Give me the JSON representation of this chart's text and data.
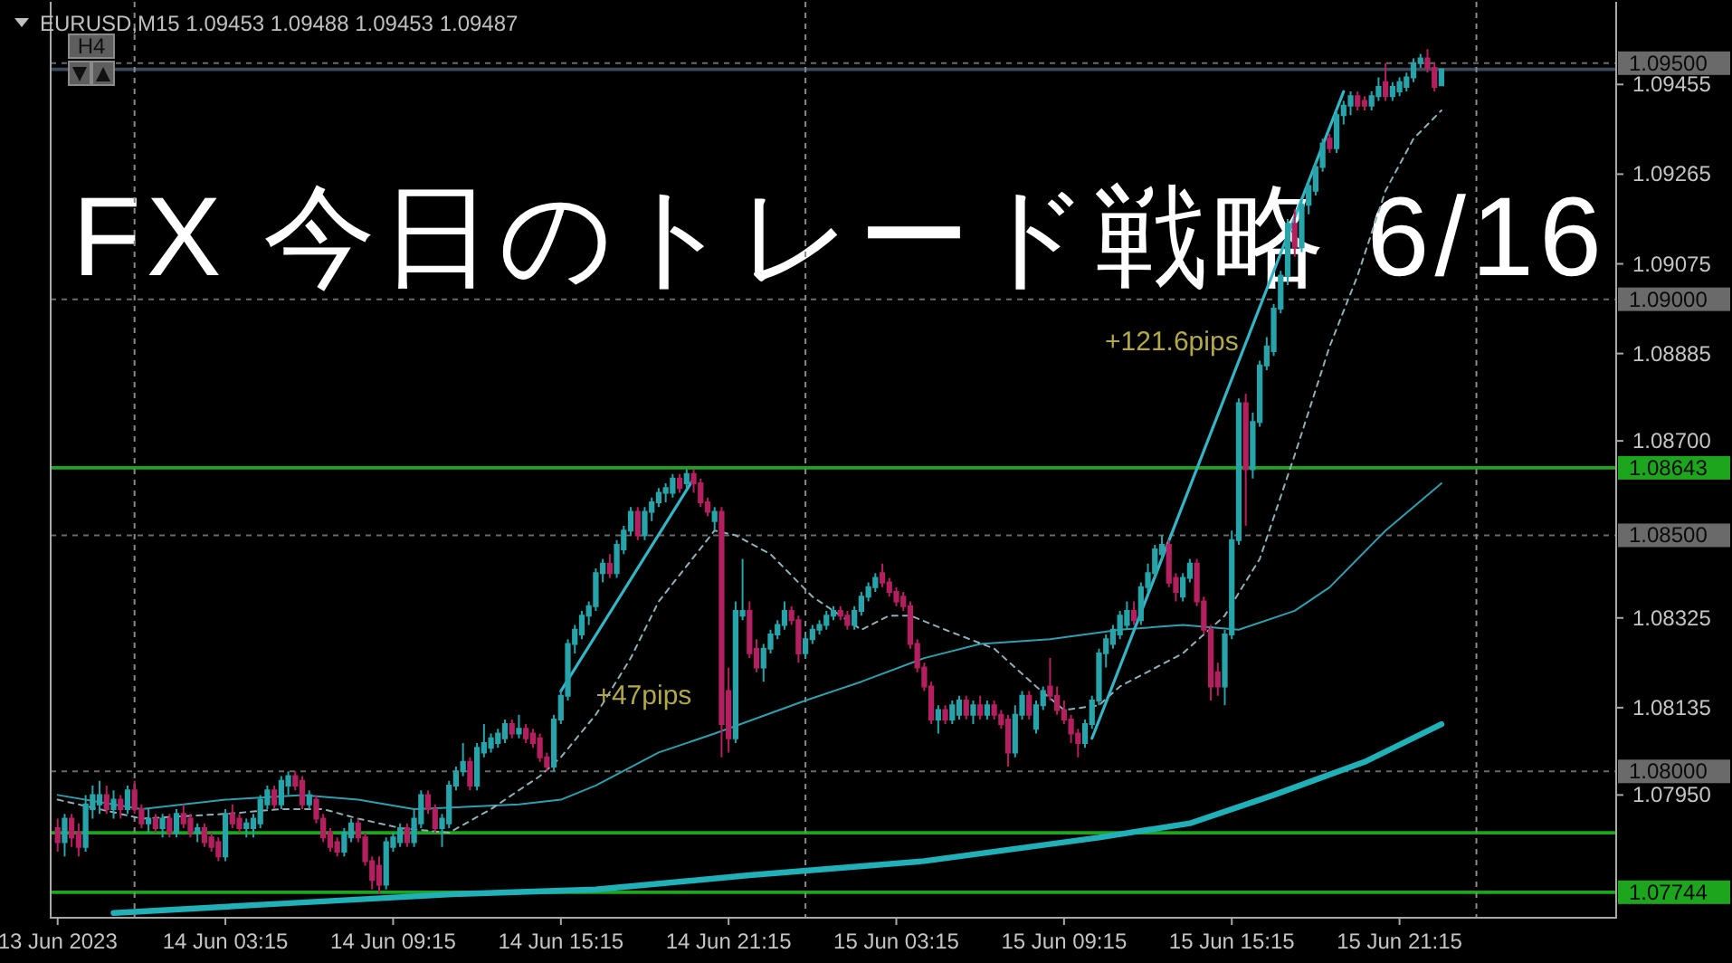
{
  "chart_data": {
    "type": "candlestick",
    "title": "FX 今日のトレード戦略 6/16",
    "subtitle": "EURUSD,M15  1.09453 1.09488 1.09453 1.09487",
    "annotations": [
      "H4",
      {
        "text": "+47pips",
        "x": "2023-06-14T16:30",
        "y": 1.0816
      },
      {
        "text": "+121.6pips",
        "x": "2023-06-15T15:45",
        "y": 1.0891
      }
    ],
    "xlim": [
      "2023-06-13T21:00",
      "2023-06-16T05:00"
    ],
    "ylim": [
      1.0769,
      1.0963
    ],
    "xticks": [
      {
        "value": "2023-06-13T21:15",
        "label": "13 Jun 2023"
      },
      {
        "value": "2023-06-14T03:15",
        "label": "14 Jun 03:15"
      },
      {
        "value": "2023-06-14T09:15",
        "label": "14 Jun 09:15"
      },
      {
        "value": "2023-06-14T15:15",
        "label": "14 Jun 15:15"
      },
      {
        "value": "2023-06-14T21:15",
        "label": "14 Jun 21:15"
      },
      {
        "value": "2023-06-15T03:15",
        "label": "15 Jun 03:15"
      },
      {
        "value": "2023-06-15T09:15",
        "label": "15 Jun 09:15"
      },
      {
        "value": "2023-06-15T15:15",
        "label": "15 Jun 15:15"
      },
      {
        "value": "2023-06-15T21:15",
        "label": "15 Jun 21:15"
      }
    ],
    "yticks": [
      1.09455,
      1.09265,
      1.09075,
      1.08885,
      {
        "value": 1.087,
        "label": "1.08700"
      },
      1.08325,
      1.08135,
      {
        "value": 1.0795,
        "label": "1.07950"
      }
    ],
    "ref_lines": [
      {
        "axis": "y",
        "value": 1.095,
        "label": "1.09500",
        "color": "#6a6a6a",
        "line_style": "dashed"
      },
      {
        "axis": "y",
        "value": 1.09,
        "label": "1.09000",
        "color": "#6a6a6a",
        "line_style": "dashed"
      },
      {
        "axis": "y",
        "value": 1.085,
        "label": "1.08500",
        "color": "#6a6a6a",
        "line_style": "dashed"
      },
      {
        "axis": "y",
        "value": 1.08,
        "label": "1.08000",
        "color": "#6a6a6a",
        "line_style": "dashed"
      },
      {
        "axis": "y",
        "value": 1.09487,
        "color": "#3b4a5c",
        "line_style": "solid"
      },
      {
        "axis": "y",
        "value": 1.08643,
        "label": "1.08643",
        "color": "#1ea51e",
        "line_style": "solid"
      },
      {
        "axis": "y",
        "value": 1.0787,
        "color": "#1ea51e",
        "line_style": "solid"
      },
      {
        "axis": "y",
        "value": 1.07744,
        "label": "1.07744",
        "color": "#1ea51e",
        "line_style": "solid"
      },
      {
        "axis": "x",
        "value": "2023-06-14T00:00",
        "color": "#8a8a8a",
        "line_style": "dashed"
      },
      {
        "axis": "x",
        "value": "2023-06-15T00:00",
        "color": "#8a8a8a",
        "line_style": "dashed"
      },
      {
        "axis": "x",
        "value": "2023-06-16T00:00",
        "color": "#8a8a8a",
        "line_style": "dashed"
      }
    ],
    "series": [
      {
        "type": "line",
        "color": "#1fb0b8",
        "line_style": "solid",
        "x": [
          "2023-06-13T23:15",
          "2023-06-14T05:15",
          "2023-06-14T11:30",
          "2023-06-14T16:30",
          "2023-06-14T22:00",
          "2023-06-15T04:15",
          "2023-06-15T10:30",
          "2023-06-15T13:45",
          "2023-06-15T16:45",
          "2023-06-15T20:00",
          "2023-06-15T22:45"
        ],
        "values": [
          1.077,
          1.0772,
          1.0774,
          1.0775,
          1.0778,
          1.0781,
          1.0786,
          1.0789,
          1.0795,
          1.0802,
          1.081
        ]
      },
      {
        "type": "line",
        "color": "#2f9fae",
        "line_style": "solid",
        "x": [
          "2023-06-13T21:15",
          "2023-06-14T00:15",
          "2023-06-14T03:15",
          "2023-06-14T06:00",
          "2023-06-14T08:00",
          "2023-06-14T10:00",
          "2023-06-14T13:45",
          "2023-06-14T15:15",
          "2023-06-14T16:30",
          "2023-06-14T18:45",
          "2023-06-14T20:45",
          "2023-06-15T00:00",
          "2023-06-15T02:00",
          "2023-06-15T04:15",
          "2023-06-15T06:15",
          "2023-06-15T08:45",
          "2023-06-15T11:15",
          "2023-06-15T13:30",
          "2023-06-15T15:30",
          "2023-06-15T17:30",
          "2023-06-15T18:45",
          "2023-06-15T19:45",
          "2023-06-15T20:45",
          "2023-06-15T22:45"
        ],
        "values": [
          1.0795,
          1.0792,
          1.0794,
          1.0795,
          1.0794,
          1.0792,
          1.0793,
          1.0794,
          1.0797,
          1.0804,
          1.0808,
          1.0815,
          1.0819,
          1.0824,
          1.0827,
          1.0828,
          1.083,
          1.0831,
          1.083,
          1.0834,
          1.0839,
          1.0845,
          1.0851,
          1.0861
        ]
      },
      {
        "type": "line",
        "color": "#8fb0b8",
        "line_style": "dashed",
        "x": [
          "2023-06-13T21:15",
          "2023-06-14T00:15",
          "2023-06-14T03:15",
          "2023-06-14T05:15",
          "2023-06-14T06:45",
          "2023-06-14T08:00",
          "2023-06-14T09:30",
          "2023-06-14T11:15",
          "2023-06-14T12:45",
          "2023-06-14T14:30",
          "2023-06-14T15:15",
          "2023-06-14T16:30",
          "2023-06-14T17:45",
          "2023-06-14T18:45",
          "2023-06-14T20:45",
          "2023-06-14T21:30",
          "2023-06-14T22:45",
          "2023-06-15T00:15",
          "2023-06-15T02:00",
          "2023-06-15T03:00",
          "2023-06-15T03:45",
          "2023-06-15T05:00",
          "2023-06-15T06:45",
          "2023-06-15T08:15",
          "2023-06-15T09:15",
          "2023-06-15T10:30",
          "2023-06-15T11:15",
          "2023-06-15T13:30",
          "2023-06-15T15:00",
          "2023-06-15T16:15",
          "2023-06-15T17:30",
          "2023-06-15T18:45",
          "2023-06-15T19:45",
          "2023-06-15T20:45",
          "2023-06-15T21:45",
          "2023-06-15T22:45"
        ],
        "values": [
          1.0794,
          1.079,
          1.0791,
          1.0792,
          1.0792,
          1.079,
          1.0788,
          1.0787,
          1.0792,
          1.0799,
          1.0803,
          1.0812,
          1.0824,
          1.0836,
          1.0851,
          1.085,
          1.0846,
          1.0837,
          1.083,
          1.0833,
          1.0833,
          1.083,
          1.0826,
          1.0818,
          1.0813,
          1.0814,
          1.0818,
          1.0825,
          1.0833,
          1.0845,
          1.0867,
          1.089,
          1.0905,
          1.0923,
          1.0934,
          1.094
        ]
      },
      {
        "type": "line",
        "color": "#33b5c5",
        "line_style": "solid",
        "x": [
          "2023-06-14T15:15",
          "2023-06-14T20:00"
        ],
        "values": [
          1.0817,
          1.0862
        ]
      },
      {
        "type": "line",
        "color": "#33b5c5",
        "line_style": "solid",
        "x": [
          "2023-06-15T10:15",
          "2023-06-15T19:15"
        ],
        "values": [
          1.0807,
          1.0944
        ]
      }
    ],
    "x": [
      "2023-06-13T21:15",
      "2023-06-13T21:30",
      "2023-06-13T21:45",
      "2023-06-13T22:00",
      "2023-06-13T22:15",
      "2023-06-13T22:30",
      "2023-06-13T22:45",
      "2023-06-13T23:00",
      "2023-06-13T23:15",
      "2023-06-13T23:30",
      "2023-06-13T23:45",
      "2023-06-14T00:00",
      "2023-06-14T00:15",
      "2023-06-14T00:30",
      "2023-06-14T00:45",
      "2023-06-14T01:00",
      "2023-06-14T01:15",
      "2023-06-14T01:30",
      "2023-06-14T01:45",
      "2023-06-14T02:00",
      "2023-06-14T02:15",
      "2023-06-14T02:30",
      "2023-06-14T02:45",
      "2023-06-14T03:00",
      "2023-06-14T03:15",
      "2023-06-14T03:30",
      "2023-06-14T03:45",
      "2023-06-14T04:00",
      "2023-06-14T04:15",
      "2023-06-14T04:30",
      "2023-06-14T04:45",
      "2023-06-14T05:00",
      "2023-06-14T05:15",
      "2023-06-14T05:30",
      "2023-06-14T05:45",
      "2023-06-14T06:00",
      "2023-06-14T06:15",
      "2023-06-14T06:30",
      "2023-06-14T06:45",
      "2023-06-14T07:00",
      "2023-06-14T07:15",
      "2023-06-14T07:30",
      "2023-06-14T07:45",
      "2023-06-14T08:00",
      "2023-06-14T08:15",
      "2023-06-14T08:30",
      "2023-06-14T08:45",
      "2023-06-14T09:00",
      "2023-06-14T09:15",
      "2023-06-14T09:30",
      "2023-06-14T09:45",
      "2023-06-14T10:00",
      "2023-06-14T10:15",
      "2023-06-14T10:30",
      "2023-06-14T10:45",
      "2023-06-14T11:00",
      "2023-06-14T11:15",
      "2023-06-14T11:30",
      "2023-06-14T11:45",
      "2023-06-14T12:00",
      "2023-06-14T12:15",
      "2023-06-14T12:30",
      "2023-06-14T12:45",
      "2023-06-14T13:00",
      "2023-06-14T13:15",
      "2023-06-14T13:30",
      "2023-06-14T13:45",
      "2023-06-14T14:00",
      "2023-06-14T14:15",
      "2023-06-14T14:30",
      "2023-06-14T14:45",
      "2023-06-14T15:00",
      "2023-06-14T15:15",
      "2023-06-14T15:30",
      "2023-06-14T15:45",
      "2023-06-14T16:00",
      "2023-06-14T16:15",
      "2023-06-14T16:30",
      "2023-06-14T16:45",
      "2023-06-14T17:00",
      "2023-06-14T17:15",
      "2023-06-14T17:30",
      "2023-06-14T17:45",
      "2023-06-14T18:00",
      "2023-06-14T18:15",
      "2023-06-14T18:30",
      "2023-06-14T18:45",
      "2023-06-14T19:00",
      "2023-06-14T19:15",
      "2023-06-14T19:30",
      "2023-06-14T19:45",
      "2023-06-14T20:00",
      "2023-06-14T20:15",
      "2023-06-14T20:30",
      "2023-06-14T20:45",
      "2023-06-14T21:00",
      "2023-06-14T21:15",
      "2023-06-14T21:30",
      "2023-06-14T21:45",
      "2023-06-14T22:00",
      "2023-06-14T22:15",
      "2023-06-14T22:30",
      "2023-06-14T22:45",
      "2023-06-14T23:00",
      "2023-06-14T23:15",
      "2023-06-14T23:30",
      "2023-06-14T23:45",
      "2023-06-15T00:00",
      "2023-06-15T00:15",
      "2023-06-15T00:30",
      "2023-06-15T00:45",
      "2023-06-15T01:00",
      "2023-06-15T01:15",
      "2023-06-15T01:30",
      "2023-06-15T01:45",
      "2023-06-15T02:00",
      "2023-06-15T02:15",
      "2023-06-15T02:30",
      "2023-06-15T02:45",
      "2023-06-15T03:00",
      "2023-06-15T03:15",
      "2023-06-15T03:30",
      "2023-06-15T03:45",
      "2023-06-15T04:00",
      "2023-06-15T04:15",
      "2023-06-15T04:30",
      "2023-06-15T04:45",
      "2023-06-15T05:00",
      "2023-06-15T05:15",
      "2023-06-15T05:30",
      "2023-06-15T05:45",
      "2023-06-15T06:00",
      "2023-06-15T06:15",
      "2023-06-15T06:30",
      "2023-06-15T06:45",
      "2023-06-15T07:00",
      "2023-06-15T07:15",
      "2023-06-15T07:30",
      "2023-06-15T07:45",
      "2023-06-15T08:00",
      "2023-06-15T08:15",
      "2023-06-15T08:30",
      "2023-06-15T08:45",
      "2023-06-15T09:00",
      "2023-06-15T09:15",
      "2023-06-15T09:30",
      "2023-06-15T09:45",
      "2023-06-15T10:00",
      "2023-06-15T10:15",
      "2023-06-15T10:30",
      "2023-06-15T10:45",
      "2023-06-15T11:00",
      "2023-06-15T11:15",
      "2023-06-15T11:30",
      "2023-06-15T11:45",
      "2023-06-15T12:00",
      "2023-06-15T12:15",
      "2023-06-15T12:30",
      "2023-06-15T12:45",
      "2023-06-15T13:00",
      "2023-06-15T13:15",
      "2023-06-15T13:30",
      "2023-06-15T13:45",
      "2023-06-15T14:00",
      "2023-06-15T14:15",
      "2023-06-15T14:30",
      "2023-06-15T14:45",
      "2023-06-15T15:00",
      "2023-06-15T15:15",
      "2023-06-15T15:30",
      "2023-06-15T15:45",
      "2023-06-15T16:00",
      "2023-06-15T16:15",
      "2023-06-15T16:30",
      "2023-06-15T16:45",
      "2023-06-15T17:00",
      "2023-06-15T17:15",
      "2023-06-15T17:30",
      "2023-06-15T17:45",
      "2023-06-15T18:00",
      "2023-06-15T18:15",
      "2023-06-15T18:30",
      "2023-06-15T18:45",
      "2023-06-15T19:00",
      "2023-06-15T19:15",
      "2023-06-15T19:30",
      "2023-06-15T19:45",
      "2023-06-15T20:00",
      "2023-06-15T20:15",
      "2023-06-15T20:30",
      "2023-06-15T20:45",
      "2023-06-15T21:00",
      "2023-06-15T21:15",
      "2023-06-15T21:30",
      "2023-06-15T21:45",
      "2023-06-15T22:00",
      "2023-06-15T22:15",
      "2023-06-15T22:30",
      "2023-06-15T22:45"
    ],
    "ohlc": [
      [
        1.0788,
        1.079,
        1.0783,
        1.0785
      ],
      [
        1.0785,
        1.0791,
        1.0782,
        1.079
      ],
      [
        1.079,
        1.0791,
        1.0784,
        1.0786
      ],
      [
        1.0787,
        1.0789,
        1.0782,
        1.0784
      ],
      [
        1.0784,
        1.0795,
        1.0783,
        1.0793
      ],
      [
        1.0792,
        1.0797,
        1.079,
        1.0795
      ],
      [
        1.0793,
        1.0798,
        1.0791,
        1.0795
      ],
      [
        1.0795,
        1.0797,
        1.0791,
        1.0792
      ],
      [
        1.0792,
        1.0796,
        1.079,
        1.0794
      ],
      [
        1.0794,
        1.0795,
        1.079,
        1.0792
      ],
      [
        1.0792,
        1.0797,
        1.0791,
        1.0796
      ],
      [
        1.0796,
        1.0798,
        1.0791,
        1.0792
      ],
      [
        1.0792,
        1.0793,
        1.0788,
        1.0789
      ],
      [
        1.0789,
        1.0792,
        1.0787,
        1.079
      ],
      [
        1.079,
        1.0791,
        1.0787,
        1.0788
      ],
      [
        1.0788,
        1.0791,
        1.0786,
        1.079
      ],
      [
        1.079,
        1.0791,
        1.0786,
        1.0787
      ],
      [
        1.0787,
        1.0792,
        1.0786,
        1.0791
      ],
      [
        1.0791,
        1.0793,
        1.0788,
        1.0789
      ],
      [
        1.079,
        1.0791,
        1.0786,
        1.0787
      ],
      [
        1.0787,
        1.0789,
        1.0785,
        1.0788
      ],
      [
        1.0788,
        1.0789,
        1.0784,
        1.0785
      ],
      [
        1.0786,
        1.0787,
        1.0783,
        1.0784
      ],
      [
        1.0785,
        1.0786,
        1.0781,
        1.0782
      ],
      [
        1.0782,
        1.0792,
        1.0781,
        1.0791
      ],
      [
        1.0791,
        1.0793,
        1.0788,
        1.0789
      ],
      [
        1.079,
        1.0791,
        1.0787,
        1.0788
      ],
      [
        1.0788,
        1.079,
        1.0786,
        1.0789
      ],
      [
        1.0788,
        1.0791,
        1.0786,
        1.079
      ],
      [
        1.0789,
        1.0795,
        1.0788,
        1.0794
      ],
      [
        1.0793,
        1.0797,
        1.0792,
        1.0796
      ],
      [
        1.0796,
        1.0797,
        1.0792,
        1.0793
      ],
      [
        1.0793,
        1.0799,
        1.0792,
        1.0798
      ],
      [
        1.0797,
        1.08,
        1.0795,
        1.0799
      ],
      [
        1.0799,
        1.08,
        1.0796,
        1.0797
      ],
      [
        1.0798,
        1.0799,
        1.0792,
        1.0793
      ],
      [
        1.0793,
        1.0796,
        1.0792,
        1.0795
      ],
      [
        1.0794,
        1.0795,
        1.0789,
        1.079
      ],
      [
        1.079,
        1.0791,
        1.0785,
        1.0786
      ],
      [
        1.0787,
        1.0788,
        1.0783,
        1.0784
      ],
      [
        1.0785,
        1.0786,
        1.0782,
        1.0783
      ],
      [
        1.0783,
        1.0788,
        1.0782,
        1.0787
      ],
      [
        1.0786,
        1.079,
        1.0785,
        1.0789
      ],
      [
        1.0789,
        1.079,
        1.0785,
        1.0786
      ],
      [
        1.0786,
        1.0787,
        1.078,
        1.0781
      ],
      [
        1.0781,
        1.0782,
        1.0775,
        1.0777
      ],
      [
        1.078,
        1.0782,
        1.0774,
        1.0776
      ],
      [
        1.0776,
        1.0786,
        1.0775,
        1.0785
      ],
      [
        1.0784,
        1.0787,
        1.0783,
        1.0786
      ],
      [
        1.0785,
        1.0789,
        1.0784,
        1.0788
      ],
      [
        1.0788,
        1.0789,
        1.0784,
        1.0785
      ],
      [
        1.0785,
        1.0792,
        1.0784,
        1.079
      ],
      [
        1.0789,
        1.0796,
        1.0788,
        1.0795
      ],
      [
        1.0795,
        1.0796,
        1.0791,
        1.0792
      ],
      [
        1.0792,
        1.0793,
        1.0787,
        1.0788
      ],
      [
        1.0788,
        1.0791,
        1.0784,
        1.079
      ],
      [
        1.0789,
        1.0798,
        1.0788,
        1.0797
      ],
      [
        1.0797,
        1.0801,
        1.0796,
        1.08
      ],
      [
        1.08,
        1.0806,
        1.0799,
        1.0802
      ],
      [
        1.0802,
        1.0803,
        1.0796,
        1.0797
      ],
      [
        1.0797,
        1.0806,
        1.0796,
        1.0805
      ],
      [
        1.0804,
        1.081,
        1.0803,
        1.0806
      ],
      [
        1.0805,
        1.0808,
        1.0804,
        1.0807
      ],
      [
        1.0806,
        1.0809,
        1.0805,
        1.0808
      ],
      [
        1.0807,
        1.0811,
        1.0806,
        1.081
      ],
      [
        1.081,
        1.0811,
        1.0807,
        1.0808
      ],
      [
        1.0808,
        1.0812,
        1.0807,
        1.0809
      ],
      [
        1.0809,
        1.081,
        1.0806,
        1.0807
      ],
      [
        1.0808,
        1.0809,
        1.0805,
        1.0806
      ],
      [
        1.0807,
        1.0808,
        1.0802,
        1.0803
      ],
      [
        1.0803,
        1.0804,
        1.08,
        1.0801
      ],
      [
        1.0801,
        1.0812,
        1.08,
        1.0811
      ],
      [
        1.0811,
        1.0817,
        1.081,
        1.0816
      ],
      [
        1.0816,
        1.0828,
        1.0815,
        1.0827
      ],
      [
        1.0827,
        1.0831,
        1.0825,
        1.083
      ],
      [
        1.0829,
        1.0834,
        1.0828,
        1.0833
      ],
      [
        1.0833,
        1.0836,
        1.0831,
        1.0835
      ],
      [
        1.0835,
        1.0843,
        1.0834,
        1.0842
      ],
      [
        1.0842,
        1.0845,
        1.084,
        1.0844
      ],
      [
        1.0844,
        1.0846,
        1.0841,
        1.0842
      ],
      [
        1.0842,
        1.0849,
        1.0841,
        1.0848
      ],
      [
        1.0847,
        1.0852,
        1.0846,
        1.0851
      ],
      [
        1.0851,
        1.0856,
        1.085,
        1.0855
      ],
      [
        1.0855,
        1.0856,
        1.0849,
        1.085
      ],
      [
        1.085,
        1.0856,
        1.0849,
        1.0855
      ],
      [
        1.0855,
        1.0858,
        1.0853,
        1.0857
      ],
      [
        1.0857,
        1.086,
        1.0856,
        1.0859
      ],
      [
        1.0859,
        1.0861,
        1.0857,
        1.086
      ],
      [
        1.0859,
        1.0863,
        1.0858,
        1.0862
      ],
      [
        1.0862,
        1.0863,
        1.0859,
        1.086
      ],
      [
        1.0861,
        1.0864,
        1.086,
        1.0863
      ],
      [
        1.0863,
        1.0864,
        1.0859,
        1.0861
      ],
      [
        1.0861,
        1.0862,
        1.0856,
        1.0857
      ],
      [
        1.0857,
        1.0858,
        1.0854,
        1.0855
      ],
      [
        1.0853,
        1.0856,
        1.0851,
        1.0855
      ],
      [
        1.0855,
        1.0856,
        1.0803,
        1.081
      ],
      [
        1.0817,
        1.0822,
        1.0804,
        1.0807
      ],
      [
        1.0807,
        1.0836,
        1.0806,
        1.0834
      ],
      [
        1.0833,
        1.0845,
        1.0832,
        1.0834
      ],
      [
        1.0834,
        1.0836,
        1.0824,
        1.0825
      ],
      [
        1.0826,
        1.0828,
        1.0821,
        1.0822
      ],
      [
        1.0822,
        1.0827,
        1.0819,
        1.0826
      ],
      [
        1.0826,
        1.083,
        1.0825,
        1.0829
      ],
      [
        1.0829,
        1.0832,
        1.0828,
        1.0831
      ],
      [
        1.0831,
        1.0836,
        1.083,
        1.0834
      ],
      [
        1.0834,
        1.0835,
        1.0831,
        1.0832
      ],
      [
        1.0832,
        1.0833,
        1.0823,
        1.0825
      ],
      [
        1.0825,
        1.0829,
        1.0824,
        1.0828
      ],
      [
        1.0828,
        1.0831,
        1.0827,
        1.083
      ],
      [
        1.083,
        1.0832,
        1.0829,
        1.0831
      ],
      [
        1.0831,
        1.0834,
        1.083,
        1.0833
      ],
      [
        1.0833,
        1.0835,
        1.0832,
        1.0834
      ],
      [
        1.0834,
        1.0835,
        1.0832,
        1.0833
      ],
      [
        1.0833,
        1.0834,
        1.083,
        1.0831
      ],
      [
        1.0831,
        1.0835,
        1.083,
        1.0834
      ],
      [
        1.0834,
        1.0838,
        1.0833,
        1.0837
      ],
      [
        1.0837,
        1.084,
        1.0836,
        1.0839
      ],
      [
        1.0839,
        1.0842,
        1.0838,
        1.0841
      ],
      [
        1.0842,
        1.0844,
        1.0839,
        1.084
      ],
      [
        1.084,
        1.0841,
        1.0837,
        1.0838
      ],
      [
        1.0838,
        1.0839,
        1.0835,
        1.0836
      ],
      [
        1.0837,
        1.0838,
        1.0834,
        1.0835
      ],
      [
        1.0835,
        1.0836,
        1.0826,
        1.0827
      ],
      [
        1.0827,
        1.0828,
        1.0821,
        1.0822
      ],
      [
        1.0822,
        1.0823,
        1.0817,
        1.0818
      ],
      [
        1.0818,
        1.0819,
        1.081,
        1.0811
      ],
      [
        1.0811,
        1.0814,
        1.0808,
        1.0813
      ],
      [
        1.0813,
        1.0814,
        1.081,
        1.0811
      ],
      [
        1.0811,
        1.0815,
        1.081,
        1.0814
      ],
      [
        1.0812,
        1.0816,
        1.0811,
        1.0815
      ],
      [
        1.0815,
        1.0816,
        1.0811,
        1.0812
      ],
      [
        1.0812,
        1.0815,
        1.081,
        1.0814
      ],
      [
        1.0814,
        1.0816,
        1.0811,
        1.0812
      ],
      [
        1.0812,
        1.0815,
        1.0811,
        1.0814
      ],
      [
        1.0814,
        1.0815,
        1.0811,
        1.0812
      ],
      [
        1.0812,
        1.0813,
        1.0809,
        1.081
      ],
      [
        1.0811,
        1.0812,
        1.0801,
        1.0804
      ],
      [
        1.0804,
        1.0814,
        1.0803,
        1.0812
      ],
      [
        1.0812,
        1.0817,
        1.0811,
        1.0816
      ],
      [
        1.0816,
        1.0817,
        1.0811,
        1.0812
      ],
      [
        1.0809,
        1.0815,
        1.0808,
        1.0814
      ],
      [
        1.0814,
        1.0818,
        1.0813,
        1.0817
      ],
      [
        1.0818,
        1.0824,
        1.0815,
        1.0816
      ],
      [
        1.0816,
        1.0818,
        1.0812,
        1.0813
      ],
      [
        1.0813,
        1.0815,
        1.081,
        1.0811
      ],
      [
        1.0811,
        1.0812,
        1.0806,
        1.0808
      ],
      [
        1.0808,
        1.0809,
        1.0803,
        1.0806
      ],
      [
        1.0806,
        1.0811,
        1.0805,
        1.081
      ],
      [
        1.081,
        1.0816,
        1.0809,
        1.0815
      ],
      [
        1.0815,
        1.0826,
        1.0814,
        1.0825
      ],
      [
        1.0825,
        1.0829,
        1.0822,
        1.0828
      ],
      [
        1.0827,
        1.0831,
        1.0826,
        1.083
      ],
      [
        1.0829,
        1.0834,
        1.0828,
        1.0833
      ],
      [
        1.0831,
        1.0836,
        1.083,
        1.0834
      ],
      [
        1.0834,
        1.0836,
        1.0831,
        1.0832
      ],
      [
        1.0832,
        1.084,
        1.0831,
        1.0839
      ],
      [
        1.0839,
        1.0844,
        1.0838,
        1.0842
      ],
      [
        1.0842,
        1.0848,
        1.0841,
        1.0847
      ],
      [
        1.0846,
        1.085,
        1.0845,
        1.0848
      ],
      [
        1.0848,
        1.0849,
        1.0839,
        1.084
      ],
      [
        1.0841,
        1.0842,
        1.0836,
        1.0838
      ],
      [
        1.0837,
        1.0842,
        1.0836,
        1.0841
      ],
      [
        1.0841,
        1.0845,
        1.084,
        1.0844
      ],
      [
        1.0844,
        1.0845,
        1.0835,
        1.0836
      ],
      [
        1.0836,
        1.0837,
        1.0829,
        1.083
      ],
      [
        1.083,
        1.0831,
        1.0815,
        1.0818
      ],
      [
        1.0821,
        1.0823,
        1.0816,
        1.0818
      ],
      [
        1.0818,
        1.083,
        1.0814,
        1.0829
      ],
      [
        1.0829,
        1.0851,
        1.0828,
        1.0849
      ],
      [
        1.0849,
        1.0879,
        1.0848,
        1.0878
      ],
      [
        1.0878,
        1.088,
        1.0852,
        1.0864
      ],
      [
        1.0864,
        1.0876,
        1.0862,
        1.0874
      ],
      [
        1.0874,
        1.0887,
        1.0873,
        1.0886
      ],
      [
        1.0886,
        1.0892,
        1.0885,
        1.089
      ],
      [
        1.0889,
        1.0899,
        1.0888,
        1.0898
      ],
      [
        1.0898,
        1.0906,
        1.0897,
        1.0905
      ],
      [
        1.0905,
        1.0917,
        1.0903,
        1.0916
      ],
      [
        1.0916,
        1.0919,
        1.0909,
        1.0911
      ],
      [
        1.0911,
        1.0921,
        1.091,
        1.092
      ],
      [
        1.092,
        1.0925,
        1.0918,
        1.0924
      ],
      [
        1.0923,
        1.0929,
        1.0922,
        1.0928
      ],
      [
        1.0928,
        1.0934,
        1.0927,
        1.0933
      ],
      [
        1.0934,
        1.0935,
        1.0931,
        1.0932
      ],
      [
        1.0932,
        1.094,
        1.0931,
        1.0939
      ],
      [
        1.0939,
        1.0942,
        1.0937,
        1.0941
      ],
      [
        1.0941,
        1.0944,
        1.0939,
        1.0943
      ],
      [
        1.0943,
        1.0944,
        1.094,
        1.0941
      ],
      [
        1.0942,
        1.0943,
        1.094,
        1.0941
      ],
      [
        1.0941,
        1.0944,
        1.094,
        1.0943
      ],
      [
        1.0943,
        1.0947,
        1.0942,
        1.0945
      ],
      [
        1.0946,
        1.095,
        1.0942,
        1.0943
      ],
      [
        1.0943,
        1.0946,
        1.0942,
        1.0945
      ],
      [
        1.0944,
        1.0947,
        1.0943,
        1.0946
      ],
      [
        1.0945,
        1.0948,
        1.0944,
        1.0947
      ],
      [
        1.0947,
        1.0951,
        1.0946,
        1.095
      ],
      [
        1.095,
        1.0952,
        1.0949,
        1.0951
      ],
      [
        1.0951,
        1.0953,
        1.0948,
        1.0949
      ],
      [
        1.0949,
        1.095,
        1.0944,
        1.0945
      ],
      [
        1.09453,
        1.09488,
        1.09453,
        1.09487
      ]
    ],
    "colors": [
      "#b4205f",
      "#26a4aa",
      "#b4205f",
      "#b4205f",
      "#26a4aa",
      "#26a4aa",
      "#26a4aa",
      "#b4205f",
      "#26a4aa",
      "#b4205f",
      "#26a4aa",
      "#b4205f",
      "#b4205f",
      "#26a4aa",
      "#b4205f",
      "#26a4aa",
      "#b4205f",
      "#26a4aa",
      "#b4205f",
      "#b4205f",
      "#26a4aa",
      "#b4205f",
      "#b4205f",
      "#b4205f",
      "#26a4aa",
      "#b4205f",
      "#b4205f",
      "#26a4aa",
      "#26a4aa",
      "#26a4aa",
      "#26a4aa",
      "#b4205f",
      "#26a4aa",
      "#26a4aa",
      "#b4205f",
      "#b4205f",
      "#26a4aa",
      "#b4205f",
      "#b4205f",
      "#b4205f",
      "#b4205f",
      "#26a4aa",
      "#26a4aa",
      "#b4205f",
      "#b4205f",
      "#b4205f",
      "#b4205f",
      "#26a4aa",
      "#26a4aa",
      "#26a4aa",
      "#b4205f",
      "#26a4aa",
      "#26a4aa",
      "#b4205f",
      "#b4205f",
      "#26a4aa",
      "#26a4aa",
      "#26a4aa",
      "#26a4aa",
      "#b4205f",
      "#26a4aa",
      "#26a4aa",
      "#26a4aa",
      "#26a4aa",
      "#26a4aa",
      "#b4205f",
      "#26a4aa",
      "#b4205f",
      "#b4205f",
      "#b4205f",
      "#b4205f",
      "#26a4aa",
      "#26a4aa",
      "#26a4aa",
      "#26a4aa",
      "#26a4aa",
      "#26a4aa",
      "#26a4aa",
      "#26a4aa",
      "#b4205f",
      "#26a4aa",
      "#26a4aa",
      "#26a4aa",
      "#b4205f",
      "#26a4aa",
      "#26a4aa",
      "#26a4aa",
      "#26a4aa",
      "#26a4aa",
      "#b4205f",
      "#26a4aa",
      "#b4205f",
      "#b4205f",
      "#b4205f",
      "#26a4aa",
      "#b4205f",
      "#b4205f",
      "#26a4aa",
      "#26a4aa",
      "#b4205f",
      "#b4205f",
      "#26a4aa",
      "#26a4aa",
      "#26a4aa",
      "#26a4aa",
      "#b4205f",
      "#b4205f",
      "#26a4aa",
      "#26a4aa",
      "#26a4aa",
      "#26a4aa",
      "#26a4aa",
      "#b4205f",
      "#b4205f",
      "#26a4aa",
      "#26a4aa",
      "#26a4aa",
      "#26a4aa",
      "#b4205f",
      "#b4205f",
      "#b4205f",
      "#b4205f",
      "#b4205f",
      "#b4205f",
      "#b4205f",
      "#b4205f",
      "#26a4aa",
      "#b4205f",
      "#26a4aa",
      "#26a4aa",
      "#b4205f",
      "#26a4aa",
      "#b4205f",
      "#26a4aa",
      "#b4205f",
      "#b4205f",
      "#b4205f",
      "#26a4aa",
      "#26a4aa",
      "#b4205f",
      "#26a4aa",
      "#26a4aa",
      "#b4205f",
      "#b4205f",
      "#b4205f",
      "#b4205f",
      "#b4205f",
      "#26a4aa",
      "#26a4aa",
      "#26a4aa",
      "#26a4aa",
      "#26a4aa",
      "#26a4aa",
      "#26a4aa",
      "#b4205f",
      "#26a4aa",
      "#26a4aa",
      "#26a4aa",
      "#26a4aa",
      "#b4205f",
      "#b4205f",
      "#26a4aa",
      "#26a4aa",
      "#b4205f",
      "#b4205f",
      "#b4205f",
      "#b4205f",
      "#26a4aa",
      "#26a4aa",
      "#26a4aa",
      "#b4205f",
      "#26a4aa",
      "#26a4aa",
      "#26a4aa",
      "#26a4aa",
      "#26a4aa",
      "#26a4aa",
      "#b4205f",
      "#26a4aa",
      "#26a4aa",
      "#26a4aa",
      "#26a4aa",
      "#b4205f",
      "#26a4aa",
      "#26a4aa",
      "#26a4aa",
      "#b4205f",
      "#b4205f",
      "#26a4aa",
      "#26a4aa",
      "#b4205f",
      "#26a4aa",
      "#26a4aa",
      "#26a4aa",
      "#26a4aa",
      "#26a4aa",
      "#b4205f",
      "#b4205f",
      "#26a4aa"
    ]
  }
}
